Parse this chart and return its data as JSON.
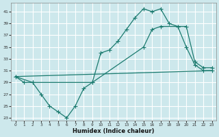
{
  "xlabel": "Humidex (Indice chaleur)",
  "xlim": [
    -0.5,
    23.5
  ],
  "ylim": [
    22.5,
    42.5
  ],
  "yticks": [
    23,
    25,
    27,
    29,
    31,
    33,
    35,
    37,
    39,
    41
  ],
  "xticks": [
    0,
    1,
    2,
    3,
    4,
    5,
    6,
    7,
    8,
    9,
    10,
    11,
    12,
    13,
    14,
    15,
    16,
    17,
    18,
    19,
    20,
    21,
    22,
    23
  ],
  "background_color": "#cde8ec",
  "grid_color": "#ffffff",
  "line_color": "#1a7a6e",
  "line1_x": [
    0,
    1,
    2,
    3,
    4,
    5,
    6,
    7,
    8,
    9,
    10,
    11,
    12,
    13,
    14,
    15,
    16,
    17,
    18,
    19,
    20,
    21,
    22,
    23
  ],
  "line1_y": [
    30,
    29,
    29,
    27,
    25,
    24,
    23,
    25,
    28,
    29,
    34,
    34.5,
    36,
    38,
    40,
    41.5,
    41,
    41.5,
    39,
    38.5,
    35,
    32,
    31,
    31
  ],
  "line2_x": [
    0,
    23
  ],
  "line2_y": [
    30,
    31
  ],
  "line3_x": [
    0,
    2,
    9,
    15,
    16,
    17,
    19,
    20,
    21,
    22,
    23
  ],
  "line3_y": [
    30,
    29,
    29,
    35,
    38,
    38.5,
    38.5,
    38.5,
    32.5,
    31.5,
    31.5
  ]
}
